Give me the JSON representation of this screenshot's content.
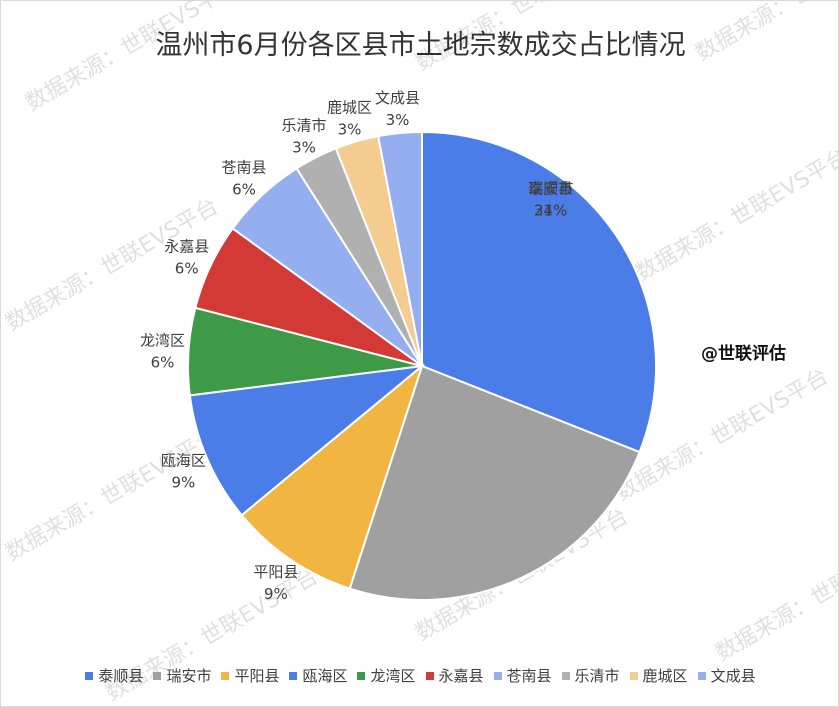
{
  "chart_data": {
    "type": "pie",
    "title": "温州市6月份各区县市土地宗数成交占比情况",
    "watermark": "数据来源：世联EVS平台",
    "brand": "@世联评估",
    "legend_position": "bottom",
    "slices": [
      {
        "name": "泰顺县",
        "label": "31%",
        "value": 31,
        "color": "#4a7de8"
      },
      {
        "name": "瑞安市",
        "label": "24%",
        "value": 24,
        "color": "#a0a0a0"
      },
      {
        "name": "平阳县",
        "label": "9%",
        "value": 9,
        "color": "#f2b541"
      },
      {
        "name": "瓯海区",
        "label": "9%",
        "value": 9,
        "color": "#4a7de8"
      },
      {
        "name": "龙湾区",
        "label": "6%",
        "value": 6,
        "color": "#3f9a48"
      },
      {
        "name": "永嘉县",
        "label": "6%",
        "value": 6,
        "color": "#d33a36"
      },
      {
        "name": "苍南县",
        "label": "6%",
        "value": 6,
        "color": "#94aef0"
      },
      {
        "name": "乐清市",
        "label": "3%",
        "value": 3,
        "color": "#b0b0b0"
      },
      {
        "name": "鹿城区",
        "label": "3%",
        "value": 3,
        "color": "#f5cc8f"
      },
      {
        "name": "文成县",
        "label": "3%",
        "value": 3,
        "color": "#94aef0"
      }
    ]
  }
}
